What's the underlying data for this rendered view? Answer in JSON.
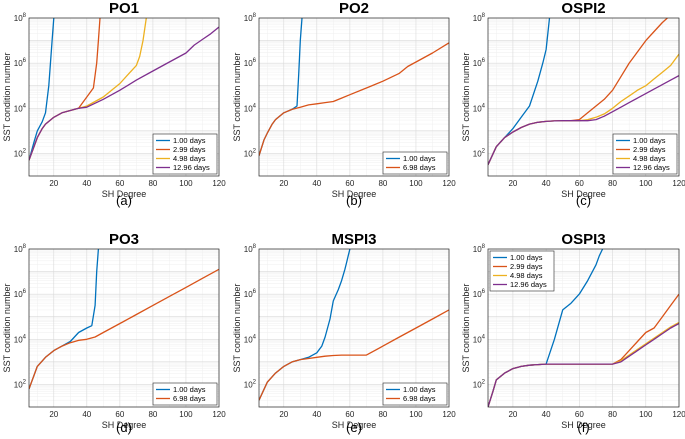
{
  "chart_data": [
    {
      "type": "line",
      "title": "PO1",
      "caption": "(a)",
      "xlabel": "SH Degree",
      "ylabel": "SST condition number",
      "xlim": [
        5,
        120
      ],
      "ylim_log10": [
        1,
        8
      ],
      "xticks": [
        "20",
        "40",
        "60",
        "80",
        "100",
        "120"
      ],
      "yticks": [
        "10",
        "10",
        "10",
        "10"
      ],
      "yexponents": [
        "2",
        "4",
        "6",
        "8"
      ],
      "legend_position": "bottom-right",
      "series": [
        {
          "name": "1.00 days",
          "color": "#0072BD",
          "x": [
            5,
            8,
            10,
            13,
            15,
            17,
            19,
            20
          ],
          "log10y": [
            1.7,
            2.5,
            3.0,
            3.4,
            3.8,
            5.0,
            7.0,
            8.0
          ]
        },
        {
          "name": "2.99 days",
          "color": "#D95319",
          "x": [
            5,
            8,
            10,
            13,
            15,
            20,
            25,
            30,
            35,
            38,
            40,
            42,
            44,
            46,
            47,
            48
          ],
          "log10y": [
            1.7,
            2.3,
            2.7,
            3.1,
            3.3,
            3.6,
            3.8,
            3.9,
            4.0,
            4.3,
            4.5,
            4.7,
            4.9,
            6.0,
            7.0,
            8.0
          ]
        },
        {
          "name": "4.98 days",
          "color": "#EDB120",
          "x": [
            5,
            8,
            10,
            13,
            15,
            20,
            25,
            30,
            35,
            40,
            45,
            50,
            55,
            60,
            65,
            70,
            72,
            74,
            76
          ],
          "log10y": [
            1.7,
            2.3,
            2.7,
            3.1,
            3.3,
            3.6,
            3.8,
            3.9,
            4.0,
            4.1,
            4.3,
            4.5,
            4.8,
            5.1,
            5.5,
            5.9,
            6.3,
            7.0,
            8.0
          ]
        },
        {
          "name": "12.96 days",
          "color": "#7E2F8E",
          "x": [
            5,
            8,
            10,
            13,
            15,
            20,
            25,
            30,
            35,
            40,
            50,
            60,
            70,
            80,
            90,
            100,
            105,
            110,
            115,
            120
          ],
          "log10y": [
            1.7,
            2.3,
            2.7,
            3.1,
            3.3,
            3.6,
            3.8,
            3.9,
            4.0,
            4.05,
            4.4,
            4.8,
            5.25,
            5.65,
            6.05,
            6.45,
            6.8,
            7.05,
            7.3,
            7.6
          ]
        }
      ]
    },
    {
      "type": "line",
      "title": "PO2",
      "caption": "(b)",
      "xlabel": "SH Degree",
      "ylabel": "SST condition number",
      "xlim": [
        5,
        120
      ],
      "ylim_log10": [
        1,
        8
      ],
      "xticks": [
        "20",
        "40",
        "60",
        "80",
        "100",
        "120"
      ],
      "yticks": [
        "10",
        "10",
        "10",
        "10"
      ],
      "yexponents": [
        "2",
        "4",
        "6",
        "8"
      ],
      "legend_position": "bottom-right",
      "series": [
        {
          "name": "1.00 days",
          "color": "#0072BD",
          "x": [
            5,
            8,
            10,
            13,
            15,
            20,
            25,
            28,
            29,
            30,
            31
          ],
          "log10y": [
            1.9,
            2.6,
            2.9,
            3.3,
            3.5,
            3.8,
            3.95,
            4.1,
            5.5,
            7.0,
            8.0
          ]
        },
        {
          "name": "6.98 days",
          "color": "#D95319",
          "x": [
            5,
            8,
            10,
            13,
            15,
            20,
            25,
            30,
            35,
            40,
            45,
            50,
            55,
            60,
            70,
            80,
            90,
            95,
            100,
            110,
            120
          ],
          "log10y": [
            1.9,
            2.6,
            2.9,
            3.3,
            3.5,
            3.8,
            3.95,
            4.05,
            4.15,
            4.2,
            4.25,
            4.3,
            4.45,
            4.6,
            4.9,
            5.2,
            5.55,
            5.85,
            6.05,
            6.45,
            6.9
          ]
        }
      ]
    },
    {
      "type": "line",
      "title": "OSPI2",
      "caption": "(c)",
      "xlabel": "SH Degree",
      "ylabel": "SST condition number",
      "xlim": [
        5,
        120
      ],
      "ylim_log10": [
        1,
        8
      ],
      "xticks": [
        "20",
        "40",
        "60",
        "80",
        "100",
        "120"
      ],
      "yticks": [
        "10",
        "10",
        "10",
        "10"
      ],
      "yexponents": [
        "2",
        "4",
        "6",
        "8"
      ],
      "legend_position": "bottom-right",
      "series": [
        {
          "name": "1.00 days",
          "color": "#0072BD",
          "x": [
            5,
            10,
            15,
            20,
            25,
            30,
            35,
            38,
            40,
            41,
            42
          ],
          "log10y": [
            1.5,
            2.3,
            2.7,
            3.1,
            3.6,
            4.1,
            5.2,
            6.0,
            6.6,
            7.3,
            8.0
          ]
        },
        {
          "name": "2.99 days",
          "color": "#D95319",
          "x": [
            5,
            10,
            15,
            20,
            25,
            30,
            35,
            40,
            45,
            50,
            55,
            60,
            65,
            70,
            75,
            80,
            85,
            90,
            95,
            100,
            105,
            110,
            113
          ],
          "log10y": [
            1.5,
            2.3,
            2.7,
            2.95,
            3.15,
            3.3,
            3.38,
            3.42,
            3.44,
            3.45,
            3.45,
            3.5,
            3.8,
            4.1,
            4.4,
            4.8,
            5.4,
            6.0,
            6.5,
            7.0,
            7.4,
            7.8,
            8.0
          ]
        },
        {
          "name": "4.98 days",
          "color": "#EDB120",
          "x": [
            5,
            10,
            15,
            20,
            25,
            30,
            35,
            40,
            45,
            50,
            55,
            60,
            65,
            70,
            75,
            80,
            85,
            90,
            95,
            100,
            105,
            110,
            115,
            120
          ],
          "log10y": [
            1.5,
            2.3,
            2.7,
            2.95,
            3.15,
            3.3,
            3.38,
            3.42,
            3.44,
            3.45,
            3.45,
            3.45,
            3.5,
            3.6,
            3.75,
            4.0,
            4.3,
            4.55,
            4.8,
            5.0,
            5.3,
            5.6,
            5.9,
            6.4
          ]
        },
        {
          "name": "12.96 days",
          "color": "#7E2F8E",
          "x": [
            5,
            10,
            15,
            20,
            25,
            30,
            35,
            40,
            45,
            50,
            55,
            60,
            65,
            70,
            75,
            80,
            85,
            90,
            95,
            100,
            105,
            110,
            115,
            120
          ],
          "log10y": [
            1.5,
            2.3,
            2.7,
            2.95,
            3.15,
            3.3,
            3.38,
            3.42,
            3.44,
            3.45,
            3.45,
            3.45,
            3.45,
            3.5,
            3.65,
            3.85,
            4.05,
            4.25,
            4.45,
            4.65,
            4.85,
            5.05,
            5.25,
            5.45
          ]
        }
      ]
    },
    {
      "type": "line",
      "title": "PO3",
      "caption": "(d)",
      "xlabel": "SH Degree",
      "ylabel": "SST condition number",
      "xlim": [
        5,
        120
      ],
      "ylim_log10": [
        1,
        8
      ],
      "xticks": [
        "20",
        "40",
        "60",
        "80",
        "100",
        "120"
      ],
      "yticks": [
        "10",
        "10",
        "10",
        "10"
      ],
      "yexponents": [
        "2",
        "4",
        "6",
        "8"
      ],
      "legend_position": "bottom-right",
      "series": [
        {
          "name": "1.00 days",
          "color": "#0072BD",
          "x": [
            5,
            8,
            10,
            15,
            20,
            25,
            30,
            35,
            40,
            43,
            45,
            46,
            47
          ],
          "log10y": [
            1.8,
            2.4,
            2.8,
            3.2,
            3.5,
            3.7,
            3.9,
            4.3,
            4.5,
            4.6,
            5.5,
            7.0,
            8.0
          ]
        },
        {
          "name": "6.98 days",
          "color": "#D95319",
          "x": [
            5,
            8,
            10,
            15,
            20,
            25,
            30,
            35,
            40,
            45,
            50,
            60,
            70,
            80,
            90,
            100,
            110,
            120
          ],
          "log10y": [
            1.8,
            2.4,
            2.8,
            3.2,
            3.5,
            3.7,
            3.85,
            3.95,
            4.0,
            4.1,
            4.3,
            4.7,
            5.1,
            5.5,
            5.9,
            6.3,
            6.7,
            7.1
          ]
        }
      ]
    },
    {
      "type": "line",
      "title": "MSPI3",
      "caption": "(e)",
      "xlabel": "SH Degree",
      "ylabel": "SST condition number",
      "xlim": [
        5,
        120
      ],
      "ylim_log10": [
        1,
        8
      ],
      "xticks": [
        "20",
        "40",
        "60",
        "80",
        "100",
        "120"
      ],
      "yticks": [
        "10",
        "10",
        "10",
        "10"
      ],
      "yexponents": [
        "2",
        "4",
        "6",
        "8"
      ],
      "legend_position": "bottom-right",
      "series": [
        {
          "name": "1.00 days",
          "color": "#0072BD",
          "x": [
            5,
            10,
            15,
            20,
            25,
            30,
            35,
            40,
            43,
            45,
            48,
            50,
            53,
            55,
            57,
            58,
            59,
            60
          ],
          "log10y": [
            1.3,
            2.1,
            2.5,
            2.8,
            3.0,
            3.1,
            3.2,
            3.4,
            3.7,
            4.1,
            4.9,
            5.7,
            6.2,
            6.6,
            7.1,
            7.4,
            7.7,
            8.0
          ]
        },
        {
          "name": "6.98 days",
          "color": "#D95319",
          "x": [
            5,
            10,
            15,
            20,
            25,
            30,
            35,
            40,
            45,
            50,
            55,
            60,
            65,
            70,
            80,
            90,
            100,
            110,
            120
          ],
          "log10y": [
            1.3,
            2.1,
            2.5,
            2.8,
            3.0,
            3.1,
            3.15,
            3.2,
            3.25,
            3.28,
            3.3,
            3.3,
            3.3,
            3.3,
            3.7,
            4.1,
            4.5,
            4.9,
            5.3
          ]
        }
      ]
    },
    {
      "type": "line",
      "title": "OSPI3",
      "caption": "(f)",
      "xlabel": "SH Degree",
      "ylabel": "SST condition number",
      "xlim": [
        5,
        120
      ],
      "ylim_log10": [
        1,
        8
      ],
      "xticks": [
        "20",
        "40",
        "60",
        "80",
        "100",
        "120"
      ],
      "yticks": [
        "10",
        "10",
        "10",
        "10"
      ],
      "yexponents": [
        "2",
        "4",
        "6",
        "8"
      ],
      "legend_position": "top-left",
      "series": [
        {
          "name": "1.00 days",
          "color": "#0072BD",
          "x": [
            5,
            8,
            10,
            15,
            20,
            25,
            30,
            35,
            40,
            45,
            50,
            55,
            60,
            65,
            70,
            72,
            74
          ],
          "log10y": [
            1.0,
            1.7,
            2.2,
            2.5,
            2.7,
            2.8,
            2.85,
            2.88,
            2.9,
            4.0,
            5.3,
            5.6,
            6.0,
            6.6,
            7.3,
            7.7,
            8.0
          ]
        },
        {
          "name": "2.99 days",
          "color": "#D95319",
          "x": [
            5,
            8,
            10,
            15,
            20,
            25,
            30,
            35,
            40,
            45,
            50,
            55,
            60,
            65,
            70,
            75,
            80,
            85,
            90,
            95,
            100,
            105,
            110,
            115,
            120
          ],
          "log10y": [
            1.0,
            1.7,
            2.2,
            2.5,
            2.7,
            2.8,
            2.85,
            2.88,
            2.9,
            2.9,
            2.9,
            2.9,
            2.9,
            2.9,
            2.9,
            2.9,
            2.9,
            3.1,
            3.5,
            3.9,
            4.3,
            4.5,
            5.0,
            5.5,
            6.0
          ]
        },
        {
          "name": "4.98 days",
          "color": "#EDB120",
          "x": [
            5,
            8,
            10,
            15,
            20,
            25,
            30,
            35,
            40,
            50,
            60,
            70,
            80,
            85,
            90,
            95,
            100,
            105,
            110,
            115,
            120
          ],
          "log10y": [
            1.0,
            1.7,
            2.2,
            2.5,
            2.7,
            2.8,
            2.85,
            2.88,
            2.9,
            2.9,
            2.9,
            2.9,
            2.9,
            3.05,
            3.3,
            3.55,
            3.8,
            4.05,
            4.3,
            4.55,
            4.75
          ]
        },
        {
          "name": "12.96 days",
          "color": "#7E2F8E",
          "x": [
            5,
            8,
            10,
            15,
            20,
            25,
            30,
            35,
            40,
            50,
            60,
            70,
            80,
            85,
            90,
            95,
            100,
            105,
            110,
            115,
            120
          ],
          "log10y": [
            1.0,
            1.7,
            2.2,
            2.5,
            2.7,
            2.8,
            2.85,
            2.88,
            2.9,
            2.9,
            2.9,
            2.9,
            2.9,
            3.0,
            3.25,
            3.5,
            3.75,
            4.0,
            4.25,
            4.5,
            4.7
          ]
        }
      ]
    }
  ]
}
